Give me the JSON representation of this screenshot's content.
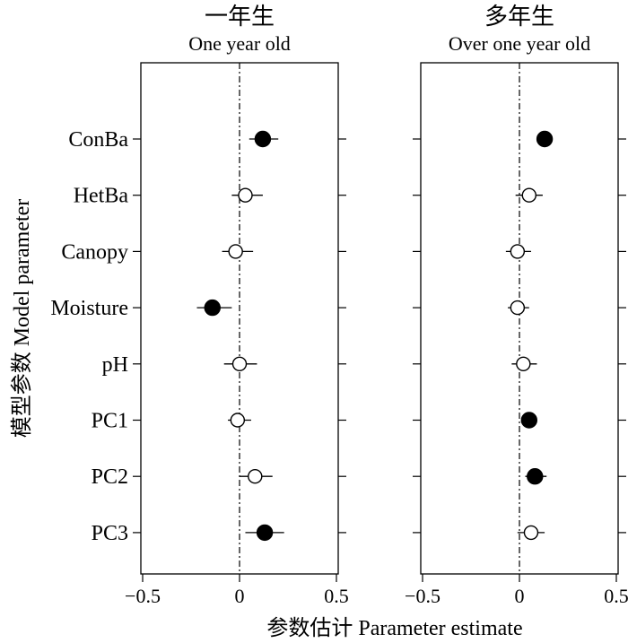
{
  "chart_data": {
    "type": "scatter",
    "ylabel": "模型参数 Model parameter",
    "xlabel": "参数估计 Parameter estimate",
    "categories": [
      "ConBa",
      "HetBa",
      "Canopy",
      "Moisture",
      "pH",
      "PC1",
      "PC2",
      "PC3"
    ],
    "xlim": [
      -0.5,
      0.5
    ],
    "xticks": [
      -0.5,
      0,
      0.5
    ],
    "xtick_labels": [
      "−0.5",
      "0",
      "0.5"
    ],
    "reference_line": 0,
    "panels": [
      {
        "title_cn": "一年生",
        "title_en": "One year old",
        "estimates": [
          0.12,
          0.03,
          -0.02,
          -0.14,
          0.0,
          -0.01,
          0.08,
          0.13
        ],
        "lower": [
          0.05,
          -0.04,
          -0.09,
          -0.22,
          -0.08,
          -0.06,
          0.0,
          0.03
        ],
        "upper": [
          0.2,
          0.12,
          0.07,
          -0.04,
          0.09,
          0.06,
          0.17,
          0.23
        ],
        "significant": [
          true,
          false,
          false,
          true,
          false,
          false,
          false,
          true
        ]
      },
      {
        "title_cn": "多年生",
        "title_en": "Over one year old",
        "estimates": [
          0.13,
          0.05,
          -0.01,
          -0.01,
          0.02,
          0.05,
          0.08,
          0.06
        ],
        "lower": [
          0.09,
          -0.02,
          -0.07,
          -0.06,
          -0.04,
          0.02,
          0.03,
          -0.01
        ],
        "upper": [
          0.17,
          0.12,
          0.06,
          0.05,
          0.09,
          0.09,
          0.14,
          0.13
        ],
        "significant": [
          true,
          false,
          false,
          false,
          false,
          true,
          true,
          false
        ]
      }
    ]
  }
}
